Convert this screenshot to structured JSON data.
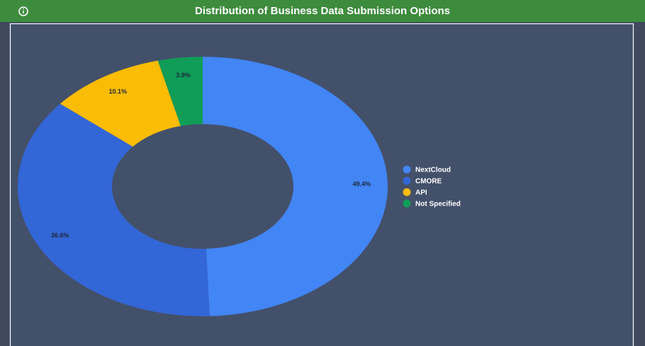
{
  "chart_data": {
    "type": "pie",
    "title": "Distribution of Business Data Submission Options",
    "categories": [
      "NextCloud",
      "CMORE",
      "API",
      "Not Specified"
    ],
    "values": [
      49.4,
      36.6,
      10.1,
      3.9
    ],
    "value_labels": [
      "49.4%",
      "36.6%",
      "10.1%",
      "3.9%"
    ],
    "colors": [
      "#4285f4",
      "#3366d6",
      "#fbbc04",
      "#0f9d58"
    ],
    "donut": true,
    "legend": "right"
  }
}
